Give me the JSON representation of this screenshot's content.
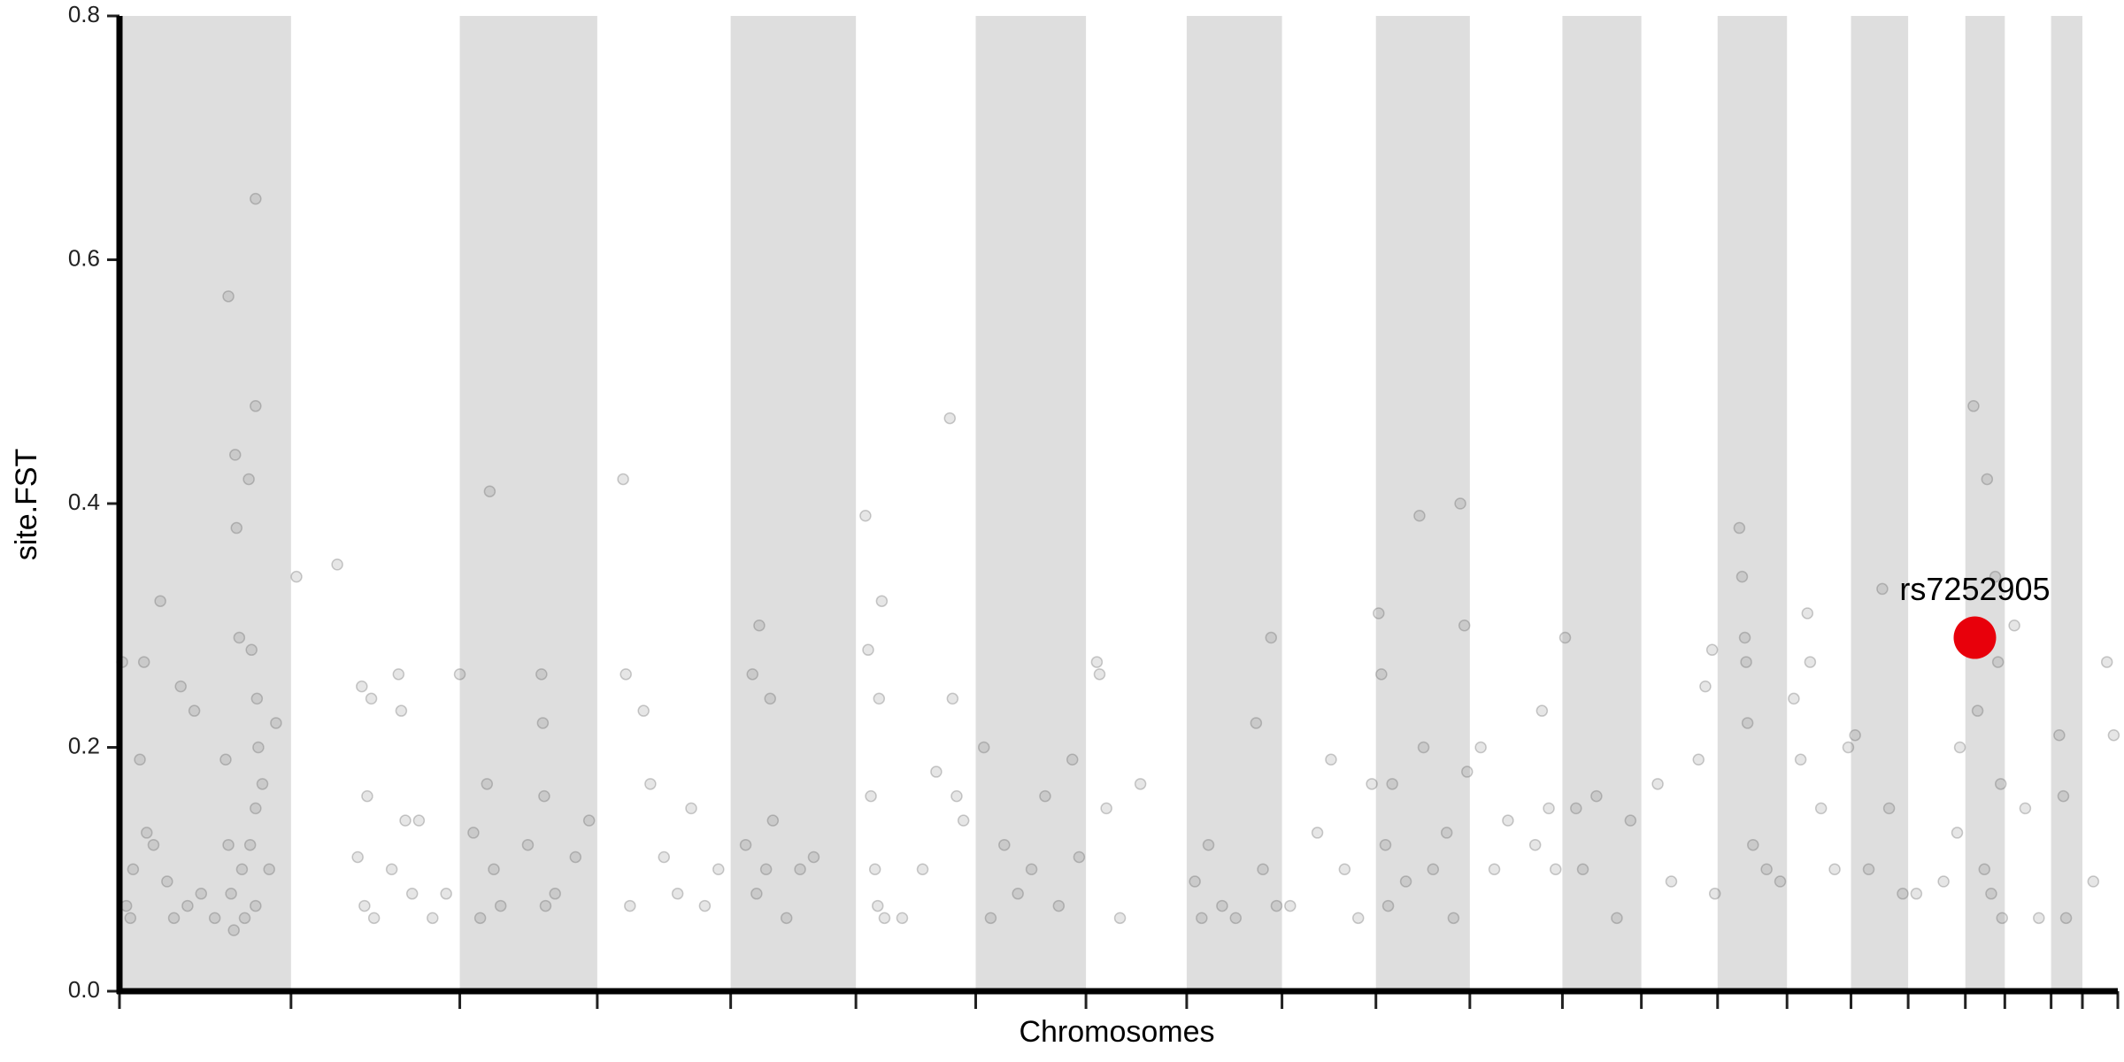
{
  "chart_data": {
    "type": "scatter",
    "xlabel": "Chromosomes",
    "ylabel": "site.FST",
    "xlim": [
      0,
      1468
    ],
    "xticks": [
      0,
      126,
      250,
      351,
      449,
      541,
      629,
      710,
      784,
      854,
      923,
      992,
      1060,
      1118,
      1174,
      1225,
      1272,
      1314,
      1356,
      1385,
      1419,
      1442,
      1468
    ],
    "ylim": [
      0,
      0.8
    ],
    "yticks": [
      {
        "value": 0,
        "label": "0.0"
      },
      0.2,
      0.4,
      0.6,
      0.8
    ],
    "shading": "alternate",
    "shade_color": "#dedede",
    "series": [
      {
        "color": "#555555",
        "x": [
          2,
          5,
          8,
          10,
          15,
          18,
          20,
          25,
          30,
          35,
          40,
          45,
          50,
          55,
          60,
          70,
          78,
          80,
          82,
          85,
          86,
          88,
          90,
          95,
          96,
          97,
          100,
          100,
          101,
          100,
          102,
          100,
          105,
          110,
          115,
          80,
          84,
          92,
          130,
          160,
          175,
          178,
          180,
          182,
          185,
          187,
          200,
          205,
          207,
          210,
          215,
          220,
          230,
          240,
          250,
          260,
          265,
          270,
          272,
          275,
          280,
          300,
          310,
          311,
          312,
          313,
          320,
          335,
          345,
          370,
          372,
          375,
          385,
          390,
          400,
          410,
          420,
          430,
          440,
          460,
          465,
          468,
          470,
          475,
          478,
          480,
          490,
          500,
          510,
          548,
          550,
          552,
          555,
          557,
          560,
          558,
          562,
          575,
          590,
          600,
          610,
          612,
          615,
          620,
          635,
          640,
          650,
          660,
          670,
          680,
          690,
          700,
          705,
          718,
          720,
          725,
          735,
          750,
          790,
          795,
          800,
          810,
          820,
          835,
          840,
          846,
          850,
          860,
          880,
          890,
          900,
          910,
          920,
          925,
          927,
          930,
          932,
          935,
          945,
          955,
          958,
          965,
          975,
          980,
          985,
          988,
          990,
          1000,
          1010,
          1020,
          1040,
          1045,
          1050,
          1055,
          1062,
          1070,
          1075,
          1085,
          1100,
          1110,
          1130,
          1140,
          1160,
          1165,
          1170,
          1172,
          1190,
          1192,
          1194,
          1195,
          1196,
          1200,
          1210,
          1220,
          1230,
          1235,
          1240,
          1242,
          1250,
          1260,
          1270,
          1275,
          1285,
          1295,
          1300,
          1310,
          1320,
          1340,
          1350,
          1352,
          1362,
          1365,
          1370,
          1372,
          1378,
          1380,
          1382,
          1383,
          1375,
          1392,
          1400,
          1410,
          1425,
          1428,
          1430,
          1450,
          1460,
          1465
        ],
        "values": [
          0.27,
          0.07,
          0.06,
          0.1,
          0.19,
          0.27,
          0.13,
          0.12,
          0.32,
          0.09,
          0.06,
          0.25,
          0.07,
          0.23,
          0.08,
          0.06,
          0.19,
          0.57,
          0.08,
          0.44,
          0.38,
          0.29,
          0.1,
          0.42,
          0.12,
          0.28,
          0.65,
          0.48,
          0.24,
          0.07,
          0.2,
          0.15,
          0.17,
          0.1,
          0.22,
          0.12,
          0.05,
          0.06,
          0.34,
          0.35,
          0.11,
          0.25,
          0.07,
          0.16,
          0.24,
          0.06,
          0.1,
          0.26,
          0.23,
          0.14,
          0.08,
          0.14,
          0.06,
          0.08,
          0.26,
          0.13,
          0.06,
          0.17,
          0.41,
          0.1,
          0.07,
          0.12,
          0.26,
          0.22,
          0.16,
          0.07,
          0.08,
          0.11,
          0.14,
          0.42,
          0.26,
          0.07,
          0.23,
          0.17,
          0.11,
          0.08,
          0.15,
          0.07,
          0.1,
          0.12,
          0.26,
          0.08,
          0.3,
          0.1,
          0.24,
          0.14,
          0.06,
          0.1,
          0.11,
          0.39,
          0.28,
          0.16,
          0.1,
          0.07,
          0.32,
          0.24,
          0.06,
          0.06,
          0.1,
          0.18,
          0.47,
          0.24,
          0.16,
          0.14,
          0.2,
          0.06,
          0.12,
          0.08,
          0.1,
          0.16,
          0.07,
          0.19,
          0.11,
          0.27,
          0.26,
          0.15,
          0.06,
          0.17,
          0.09,
          0.06,
          0.12,
          0.07,
          0.06,
          0.22,
          0.1,
          0.29,
          0.07,
          0.07,
          0.13,
          0.19,
          0.1,
          0.06,
          0.17,
          0.31,
          0.26,
          0.12,
          0.07,
          0.17,
          0.09,
          0.39,
          0.2,
          0.1,
          0.13,
          0.06,
          0.4,
          0.3,
          0.18,
          0.2,
          0.1,
          0.14,
          0.12,
          0.23,
          0.15,
          0.1,
          0.29,
          0.15,
          0.1,
          0.16,
          0.06,
          0.14,
          0.17,
          0.09,
          0.19,
          0.25,
          0.28,
          0.08,
          0.38,
          0.34,
          0.29,
          0.27,
          0.22,
          0.12,
          0.1,
          0.09,
          0.24,
          0.19,
          0.31,
          0.27,
          0.15,
          0.1,
          0.2,
          0.21,
          0.1,
          0.33,
          0.15,
          0.08,
          0.08,
          0.09,
          0.13,
          0.2,
          0.48,
          0.23,
          0.1,
          0.42,
          0.34,
          0.27,
          0.17,
          0.06,
          0.08,
          0.3,
          0.15,
          0.06,
          0.21,
          0.16,
          0.06,
          0.09,
          0.27,
          0.21
        ]
      }
    ],
    "highlight": {
      "label": "rs7252905",
      "x": 1363,
      "y": 0.29,
      "color": "#e8000b"
    }
  }
}
